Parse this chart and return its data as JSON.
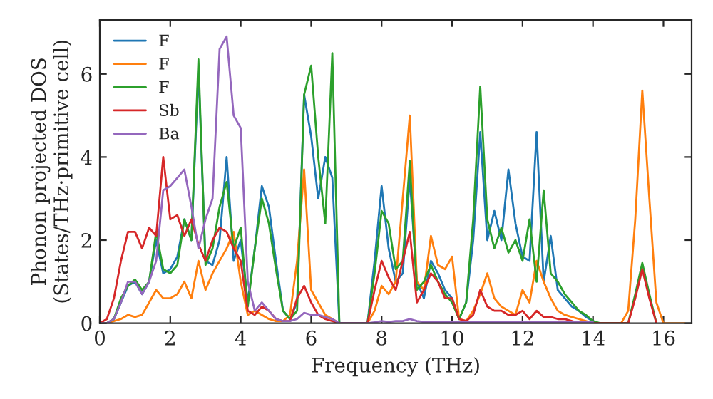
{
  "chart_data": {
    "type": "line",
    "xlabel": "Frequency (THz)",
    "ylabel": "Phonon projected DOS\n(States/THz·primitive cell)",
    "x": [
      0,
      0.2,
      0.4,
      0.6,
      0.8,
      1.0,
      1.2,
      1.4,
      1.6,
      1.8,
      2.0,
      2.2,
      2.4,
      2.6,
      2.8,
      3.0,
      3.2,
      3.4,
      3.6,
      3.8,
      4.0,
      4.2,
      4.4,
      4.6,
      4.8,
      5.0,
      5.2,
      5.4,
      5.6,
      5.8,
      6.0,
      6.2,
      6.4,
      6.6,
      6.8,
      7.0,
      7.2,
      7.4,
      7.6,
      7.8,
      8.0,
      8.2,
      8.4,
      8.6,
      8.8,
      9.0,
      9.2,
      9.4,
      9.6,
      9.8,
      10.0,
      10.2,
      10.4,
      10.6,
      10.8,
      11.0,
      11.2,
      11.4,
      11.6,
      11.8,
      12.0,
      12.2,
      12.4,
      12.6,
      12.8,
      13.0,
      13.2,
      13.4,
      13.6,
      13.8,
      14.0,
      14.2,
      14.4,
      14.6,
      14.8,
      15.0,
      15.2,
      15.4,
      15.6,
      15.8,
      16.0,
      16.2,
      16.4,
      16.6
    ],
    "series": [
      {
        "name": "F",
        "color": "#1f77b4",
        "values": [
          0,
          0,
          0.1,
          0.5,
          0.9,
          1.0,
          0.7,
          1.0,
          2.0,
          1.2,
          1.3,
          1.6,
          2.5,
          2.0,
          6.1,
          1.5,
          1.4,
          2.0,
          4.0,
          1.5,
          2.0,
          0.5,
          1.8,
          3.3,
          2.8,
          1.5,
          0.3,
          0.1,
          0.5,
          5.5,
          4.5,
          3.0,
          4.0,
          3.5,
          0,
          0,
          0,
          0,
          0,
          1.5,
          3.3,
          1.8,
          1.0,
          1.2,
          3.5,
          1.0,
          0.6,
          1.5,
          1.2,
          0.8,
          0.6,
          0.1,
          0.5,
          2.0,
          4.6,
          2.0,
          2.7,
          2.0,
          3.7,
          2.4,
          1.6,
          1.5,
          4.6,
          1.0,
          2.1,
          0.8,
          0.6,
          0.4,
          0.3,
          0.15,
          0.05,
          null,
          null,
          null,
          null,
          null,
          null,
          null,
          null,
          null,
          null,
          null,
          null,
          null
        ]
      },
      {
        "name": "F",
        "color": "#ff7f0e",
        "values": [
          0,
          0,
          0.05,
          0.1,
          0.2,
          0.15,
          0.2,
          0.5,
          0.8,
          0.6,
          0.6,
          0.7,
          1.0,
          0.6,
          1.5,
          0.8,
          1.2,
          1.5,
          1.8,
          2.2,
          1.0,
          0.2,
          0.3,
          0.2,
          0.1,
          0.05,
          0.05,
          0.2,
          1.5,
          3.7,
          0.8,
          0.5,
          0.2,
          0.1,
          0,
          0,
          0,
          0,
          0,
          0.3,
          0.9,
          0.7,
          1.0,
          3.0,
          5.0,
          1.0,
          0.8,
          2.1,
          1.4,
          1.3,
          1.6,
          0.1,
          0.05,
          0.3,
          0.7,
          1.2,
          0.6,
          0.4,
          0.3,
          0.2,
          0.8,
          0.5,
          1.5,
          1.0,
          0.6,
          0.3,
          0.2,
          0.15,
          0.1,
          0.05,
          0,
          0,
          0,
          0,
          0,
          0.3,
          2.5,
          5.6,
          3.0,
          0.5,
          0,
          0,
          0,
          0
        ]
      },
      {
        "name": "F",
        "color": "#2ca02c",
        "values": [
          0,
          0,
          0.1,
          0.6,
          0.9,
          1.05,
          0.8,
          1.0,
          2.2,
          1.3,
          1.2,
          1.4,
          2.5,
          2.0,
          6.35,
          1.4,
          1.8,
          2.8,
          3.4,
          1.8,
          2.3,
          0.4,
          1.8,
          3.0,
          2.4,
          1.3,
          0.3,
          0.1,
          0.3,
          5.5,
          6.2,
          4.0,
          2.4,
          6.5,
          0,
          0,
          0,
          0,
          0,
          1.2,
          2.7,
          2.4,
          1.3,
          1.5,
          3.9,
          0.8,
          1.0,
          1.4,
          1.0,
          0.7,
          0.5,
          0.1,
          0.5,
          2.5,
          5.7,
          2.5,
          1.8,
          2.3,
          1.7,
          2.0,
          1.5,
          2.5,
          1.0,
          3.2,
          1.2,
          1.0,
          0.7,
          0.5,
          0.3,
          0.2,
          0.05,
          0,
          0,
          0,
          0,
          0,
          0.7,
          1.45,
          0.7,
          0,
          null,
          null,
          null,
          null
        ]
      },
      {
        "name": "Sb",
        "color": "#d62728",
        "values": [
          0,
          0.1,
          0.6,
          1.5,
          2.2,
          2.2,
          1.8,
          2.3,
          2.1,
          4.0,
          2.5,
          2.6,
          2.1,
          2.5,
          1.9,
          1.5,
          2.0,
          2.3,
          2.2,
          1.8,
          1.5,
          0.3,
          0.2,
          0.4,
          0.3,
          0.1,
          0.05,
          0.05,
          0.6,
          0.9,
          0.5,
          0.2,
          0.1,
          0.05,
          0,
          0,
          0,
          0,
          0,
          0.8,
          1.5,
          1.1,
          0.8,
          1.5,
          2.2,
          0.5,
          0.8,
          1.2,
          1.0,
          0.6,
          0.6,
          0.1,
          0.05,
          0.2,
          0.8,
          0.4,
          0.3,
          0.3,
          0.2,
          0.2,
          0.3,
          0.1,
          0.3,
          0.15,
          0.15,
          0.1,
          0.1,
          0.05,
          0,
          0,
          0,
          0,
          0,
          0,
          0,
          0,
          0.6,
          1.3,
          0.6,
          0,
          null,
          null,
          null,
          null
        ]
      },
      {
        "name": "Ba",
        "color": "#9467bd",
        "values": [
          0,
          0,
          0.1,
          0.5,
          1.0,
          1.0,
          0.7,
          1.0,
          1.5,
          3.2,
          3.3,
          3.5,
          3.7,
          2.8,
          1.8,
          2.5,
          3.0,
          6.6,
          6.9,
          5.0,
          4.7,
          1.0,
          0.3,
          0.5,
          0.3,
          0.1,
          0.05,
          0.05,
          0.1,
          0.25,
          0.2,
          0.2,
          0.15,
          0.1,
          0,
          0,
          0,
          0,
          0,
          0.02,
          0.05,
          0.03,
          0.05,
          0.05,
          0.1,
          0.05,
          0.03,
          0.02,
          0.02,
          0.02,
          0.02,
          0.02,
          0.02,
          0.02,
          0.02,
          0.02,
          0.02,
          0.02,
          0.02,
          0.02,
          0.02,
          0.02,
          0.02,
          0.02,
          0.02,
          0.02,
          0.02,
          0.02,
          0.02,
          0.02,
          0.02,
          null,
          null,
          null,
          null,
          null,
          null,
          null,
          null,
          null,
          null,
          null,
          null,
          null
        ]
      }
    ],
    "xlim": [
      0,
      16.8
    ],
    "ylim": [
      0,
      7.3
    ],
    "xticks": [
      0,
      2,
      4,
      6,
      8,
      10,
      12,
      14,
      16
    ],
    "yticks": [
      0,
      2,
      4,
      6
    ],
    "legend": "top left",
    "grid": false
  }
}
